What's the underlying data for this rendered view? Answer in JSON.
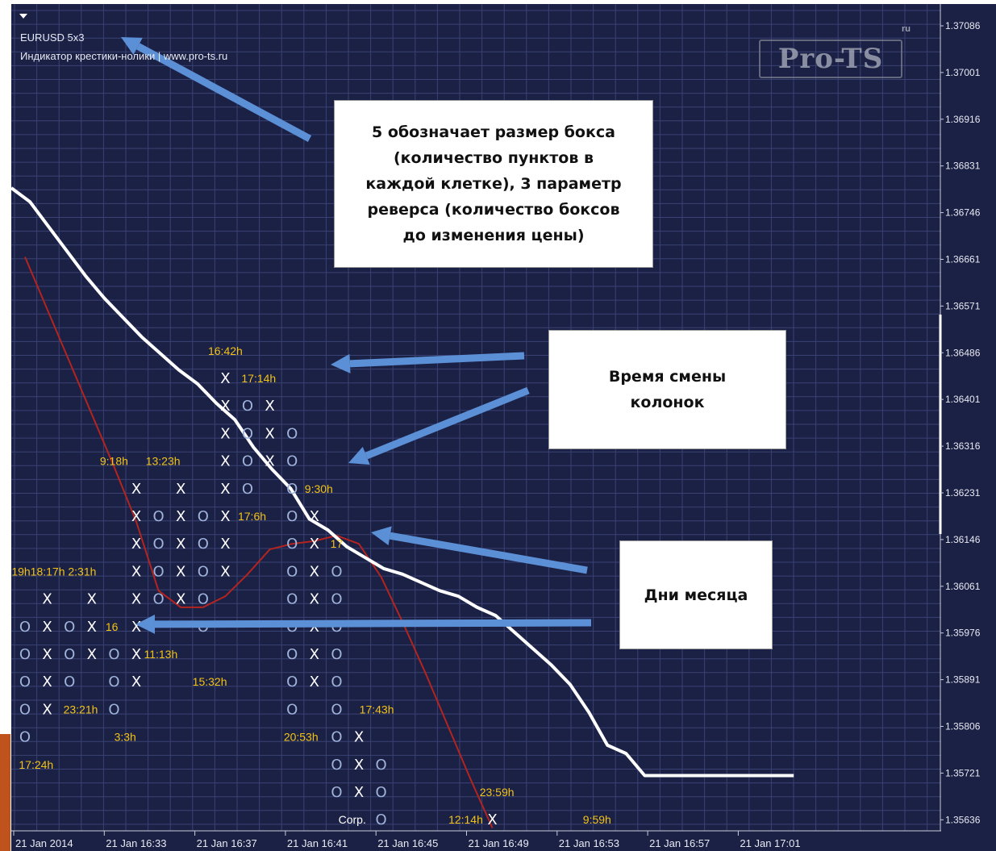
{
  "header": {
    "symbol": "EURUSD 5x3",
    "subtitle": "Индикатор крестики-нолики | www.pro-ts.ru"
  },
  "logo": {
    "text": "Pro-TS",
    "sup": "ru"
  },
  "annotations": {
    "box_size": [
      "5 обозначает размер бокса",
      "(количество пунктов в",
      "каждой клетке), 3 параметр",
      "реверса (количество боксов",
      "до изменения цены)"
    ],
    "column_time": [
      "Время смены",
      "колонок"
    ],
    "month_days": [
      "Дни месяца"
    ]
  },
  "colors": {
    "background": "#1b2045",
    "grid": "#3a4274",
    "x_mark": "#ffffff",
    "o_mark": "#9fb3db",
    "time_label": "#f2c316",
    "white_line": "#ffffff",
    "red_line": "#b3241f",
    "arrow": "#5b8fd6",
    "axis_text": "#e8eaf2"
  },
  "chart_data": {
    "type": "point-and-figure",
    "symbol": "EURUSD",
    "box_size": 5,
    "reversal": 3,
    "y_ticks": [
      "1.37086",
      "1.37001",
      "1.36916",
      "1.36831",
      "1.36746",
      "1.36661",
      "1.36571",
      "1.36486",
      "1.36401",
      "1.36316",
      "1.36231",
      "1.36146",
      "1.36061",
      "1.35976",
      "1.35891",
      "1.35806",
      "1.35721",
      "1.35636"
    ],
    "x_ticks": [
      "21 Jan 2014",
      "21 Jan 16:33",
      "21 Jan 16:37",
      "21 Jan 16:41",
      "21 Jan 16:45",
      "21 Jan 16:49",
      "21 Jan 16:53",
      "21 Jan 16:57",
      "21 Jan 17:01"
    ],
    "columns": [
      {
        "col": 0,
        "kind": "O",
        "rows": [
          9,
          10,
          11,
          12,
          13
        ]
      },
      {
        "col": 1,
        "kind": "X",
        "rows": [
          8,
          9,
          10,
          11,
          12
        ]
      },
      {
        "col": 2,
        "kind": "O",
        "rows": [
          9,
          10,
          11
        ]
      },
      {
        "col": 3,
        "kind": "X",
        "rows": [
          8,
          9,
          10
        ]
      },
      {
        "col": 4,
        "kind": "O",
        "rows": [
          10,
          11,
          12
        ]
      },
      {
        "col": 5,
        "kind": "X",
        "rows": [
          4,
          5,
          6,
          7,
          8,
          9,
          10,
          11
        ]
      },
      {
        "col": 6,
        "kind": "O",
        "rows": [
          5,
          6,
          7,
          8
        ]
      },
      {
        "col": 7,
        "kind": "X",
        "rows": [
          4,
          5,
          6,
          7,
          8
        ]
      },
      {
        "col": 8,
        "kind": "O",
        "rows": [
          5,
          6,
          7,
          8,
          9
        ]
      },
      {
        "col": 9,
        "kind": "X",
        "rows": [
          0,
          1,
          2,
          3,
          4,
          5,
          6,
          7
        ]
      },
      {
        "col": 10,
        "kind": "O",
        "rows": [
          1,
          2,
          3,
          4
        ]
      },
      {
        "col": 11,
        "kind": "X",
        "rows": [
          1,
          2,
          3
        ]
      },
      {
        "col": 12,
        "kind": "O",
        "rows": [
          2,
          3,
          4,
          5,
          6,
          7,
          8,
          9,
          10,
          11,
          12
        ]
      },
      {
        "col": 13,
        "kind": "X",
        "rows": [
          5,
          6,
          7,
          8,
          9,
          10,
          11
        ]
      },
      {
        "col": 14,
        "kind": "O",
        "rows": [
          7,
          8,
          9,
          10,
          11,
          12,
          13,
          14,
          15
        ]
      },
      {
        "col": 15,
        "kind": "X",
        "rows": [
          13,
          14,
          15
        ]
      },
      {
        "col": 16,
        "kind": "O",
        "rows": [
          14,
          15,
          16
        ]
      },
      {
        "col": 21,
        "kind": "X",
        "rows": [
          16
        ]
      }
    ],
    "time_labels": [
      {
        "text": "16:42h",
        "col": 9,
        "row": -1
      },
      {
        "text": "17:14h",
        "col": 10.5,
        "row": 0
      },
      {
        "text": "9:18h",
        "col": 4,
        "row": 3
      },
      {
        "text": "13:23h",
        "col": 6.2,
        "row": 3
      },
      {
        "text": "9:30h",
        "col": 13.2,
        "row": 4
      },
      {
        "text": "17:6h",
        "col": 10.2,
        "row": 5
      },
      {
        "text": "17",
        "col": 14,
        "row": 6
      },
      {
        "text": "19h18:17h 2:31h",
        "col": 1.3,
        "row": 7
      },
      {
        "text": "16",
        "col": 3.9,
        "row": 9
      },
      {
        "text": "11:13h",
        "col": 6.1,
        "row": 10
      },
      {
        "text": "15:32h",
        "col": 8.3,
        "row": 11
      },
      {
        "text": "23:21h",
        "col": 2.5,
        "row": 12
      },
      {
        "text": "17:43h",
        "col": 15.8,
        "row": 12
      },
      {
        "text": "3:3h",
        "col": 4.5,
        "row": 13
      },
      {
        "text": "20:53h",
        "col": 12.4,
        "row": 13
      },
      {
        "text": "17:24h",
        "col": 0.5,
        "row": 14
      },
      {
        "text": "23:59h",
        "col": 21.2,
        "row": 15
      },
      {
        "text": "12:14h",
        "col": 19.8,
        "row": 16
      },
      {
        "text": "9:59h",
        "col": 25.7,
        "row": 16
      },
      {
        "text": "Corp.",
        "col": 14.7,
        "row": 16
      }
    ],
    "white_line": [
      [
        0,
        -6.9
      ],
      [
        1,
        -6.4
      ],
      [
        2,
        -5.5
      ],
      [
        3,
        -4.6
      ],
      [
        4,
        -3.7
      ],
      [
        5,
        -2.9
      ],
      [
        6,
        -2.2
      ],
      [
        7,
        -1.5
      ],
      [
        8,
        -0.9
      ],
      [
        9,
        -0.3
      ],
      [
        10,
        0.2
      ],
      [
        11,
        0.9
      ],
      [
        12,
        1.5
      ],
      [
        13,
        2.5
      ],
      [
        14,
        3.3
      ],
      [
        15,
        4.0
      ],
      [
        16,
        5.1
      ],
      [
        17,
        5.5
      ],
      [
        18,
        6.1
      ],
      [
        19,
        6.5
      ],
      [
        20,
        6.9
      ],
      [
        21,
        7.1
      ],
      [
        22,
        7.4
      ],
      [
        23,
        7.7
      ],
      [
        24,
        7.9
      ],
      [
        25,
        8.3
      ],
      [
        26,
        8.6
      ],
      [
        27,
        9.2
      ],
      [
        28,
        9.8
      ],
      [
        29,
        10.4
      ],
      [
        30,
        11.1
      ],
      [
        31,
        12.1
      ],
      [
        32,
        13.3
      ],
      [
        33,
        13.6
      ],
      [
        34,
        14.4
      ],
      [
        35,
        14.4
      ],
      [
        36,
        14.4
      ],
      [
        37,
        14.4
      ],
      [
        38,
        14.4
      ],
      [
        39,
        14.4
      ],
      [
        40,
        14.4
      ],
      [
        41,
        14.4
      ],
      [
        42,
        14.4
      ]
    ],
    "red_line": [
      [
        0,
        -4.4
      ],
      [
        2,
        -0.6
      ],
      [
        4,
        3.2
      ],
      [
        5,
        5.2
      ],
      [
        6,
        7.7
      ],
      [
        7,
        8.3
      ],
      [
        8,
        8.3
      ],
      [
        9,
        7.9
      ],
      [
        10,
        7.1
      ],
      [
        11,
        6.2
      ],
      [
        12,
        6.0
      ],
      [
        13,
        5.9
      ],
      [
        14,
        5.7
      ],
      [
        15,
        6.0
      ],
      [
        16,
        7.2
      ],
      [
        17,
        8.9
      ],
      [
        18,
        10.7
      ],
      [
        19,
        12.6
      ],
      [
        20,
        14.5
      ],
      [
        21,
        16.3
      ]
    ],
    "y_range": [
      1.35636,
      1.37086
    ]
  }
}
